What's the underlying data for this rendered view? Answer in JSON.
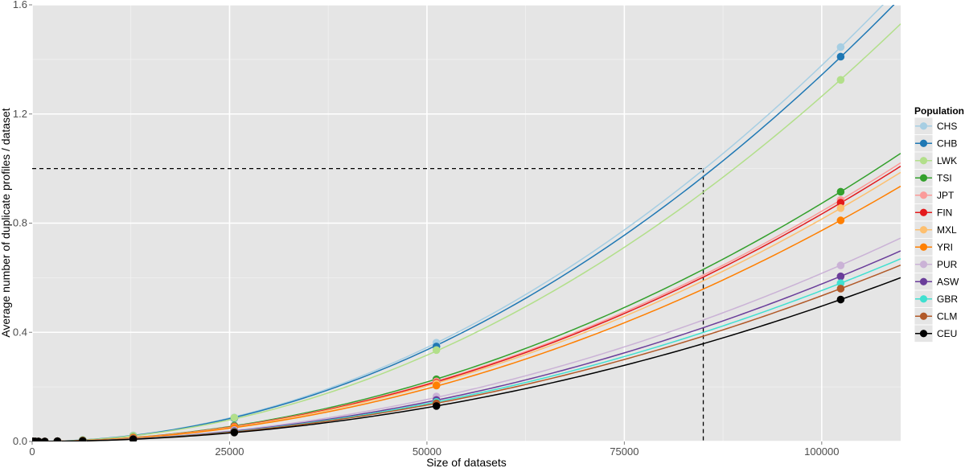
{
  "chart_data": {
    "type": "line",
    "title": "",
    "xlabel": "Size of datasets",
    "ylabel": "Average number of duplicate profiles / dataset",
    "xlim": [
      0,
      110000
    ],
    "ylim": [
      0,
      1.6
    ],
    "x_ticks": [
      0,
      25000,
      50000,
      75000,
      100000
    ],
    "x_tick_labels": [
      "0",
      "25000",
      "50000",
      "75000",
      "100000"
    ],
    "y_ticks": [
      0,
      0.4,
      0.8,
      1.2,
      1.6
    ],
    "y_tick_labels": [
      "0.0",
      "0.4",
      "0.8",
      "1.2",
      "1.6"
    ],
    "grid": true,
    "legend": {
      "title": "Population",
      "placement": "right"
    },
    "reference_lines": {
      "x": 85000,
      "y": 1.0,
      "style": "dashed"
    },
    "x": [
      100,
      200,
      400,
      800,
      1600,
      3200,
      6400,
      12800,
      25600,
      51200,
      102400
    ],
    "series": [
      {
        "name": "CHS",
        "color": "#a6cee3",
        "values": [
          0,
          0,
          0,
          0,
          0,
          0.001,
          0.006,
          0.022,
          0.088,
          0.362,
          1.445
        ]
      },
      {
        "name": "CHB",
        "color": "#1f78b4",
        "values": [
          0,
          0,
          0,
          0,
          0,
          0.001,
          0.005,
          0.021,
          0.085,
          0.348,
          1.41
        ]
      },
      {
        "name": "LWK",
        "color": "#b2df8a",
        "values": [
          0,
          0,
          0,
          0,
          0,
          0.001,
          0.005,
          0.021,
          0.087,
          0.335,
          1.325
        ]
      },
      {
        "name": "TSI",
        "color": "#33a02c",
        "values": [
          0,
          0,
          0,
          0,
          0,
          0.001,
          0.004,
          0.015,
          0.058,
          0.228,
          0.915
        ]
      },
      {
        "name": "JPT",
        "color": "#fb9a99",
        "values": [
          0,
          0,
          0,
          0,
          0,
          0.001,
          0.003,
          0.014,
          0.055,
          0.22,
          0.885
        ]
      },
      {
        "name": "FIN",
        "color": "#e31a1c",
        "values": [
          0,
          0,
          0,
          0,
          0,
          0.001,
          0.003,
          0.014,
          0.054,
          0.215,
          0.875
        ]
      },
      {
        "name": "MXL",
        "color": "#fdbf6f",
        "values": [
          0,
          0,
          0,
          0,
          0,
          0.001,
          0.003,
          0.013,
          0.052,
          0.212,
          0.855
        ]
      },
      {
        "name": "YRI",
        "color": "#ff7f00",
        "values": [
          0,
          0,
          0,
          0,
          0,
          0.001,
          0.003,
          0.013,
          0.05,
          0.205,
          0.81
        ]
      },
      {
        "name": "PUR",
        "color": "#cab2d6",
        "values": [
          0,
          0,
          0,
          0,
          0,
          0.001,
          0.002,
          0.01,
          0.042,
          0.165,
          0.645
        ]
      },
      {
        "name": "ASW",
        "color": "#6a3d9a",
        "values": [
          0,
          0,
          0,
          0,
          0,
          0.001,
          0.002,
          0.01,
          0.038,
          0.152,
          0.605
        ]
      },
      {
        "name": "GBR",
        "color": "#40e0d0",
        "values": [
          0,
          0,
          0,
          0,
          0,
          0.001,
          0.002,
          0.009,
          0.036,
          0.145,
          0.58
        ]
      },
      {
        "name": "CLM",
        "color": "#b15928",
        "values": [
          0,
          0,
          0,
          0,
          0,
          0.001,
          0.002,
          0.009,
          0.035,
          0.14,
          0.56
        ]
      },
      {
        "name": "CEU",
        "color": "#000000",
        "values": [
          0,
          0,
          0,
          0,
          0,
          0.001,
          0.002,
          0.008,
          0.033,
          0.13,
          0.52
        ]
      }
    ]
  }
}
